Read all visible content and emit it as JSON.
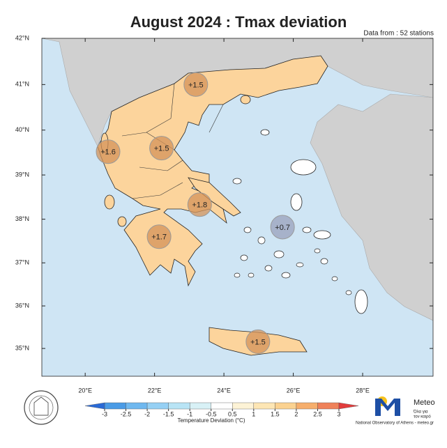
{
  "map": {
    "title": "August 2024 : Tmax deviation",
    "subtitle": "Data from : 52 stations",
    "projection": "mercator",
    "xlim": [
      18.75,
      30.03
    ],
    "ylim": [
      34.34,
      42
    ],
    "xticks": [
      {
        "value": 20,
        "label": "20°E"
      },
      {
        "value": 22,
        "label": "22°E"
      },
      {
        "value": 24,
        "label": "24°E"
      },
      {
        "value": 26,
        "label": "26°E"
      },
      {
        "value": 28,
        "label": "28°E"
      }
    ],
    "yticks": [
      {
        "value": 35,
        "label": "35°N"
      },
      {
        "value": 36,
        "label": "36°N"
      },
      {
        "value": 37,
        "label": "37°N"
      },
      {
        "value": 38,
        "label": "38°N"
      },
      {
        "value": 39,
        "label": "39°N"
      },
      {
        "value": 40,
        "label": "40°N"
      },
      {
        "value": 41,
        "label": "41°N"
      },
      {
        "value": 42,
        "label": "42°N"
      }
    ],
    "markers": [
      {
        "lon": 23.19,
        "lat": 41.0,
        "value": 1.5,
        "label": "+1.5",
        "color": "#d4935a"
      },
      {
        "lon": 20.66,
        "lat": 39.52,
        "value": 1.6,
        "label": "+1.6",
        "color": "#d4935a"
      },
      {
        "lon": 22.2,
        "lat": 39.6,
        "value": 1.5,
        "label": "+1.5",
        "color": "#d4935a"
      },
      {
        "lon": 23.3,
        "lat": 38.33,
        "value": 1.8,
        "label": "+1.8",
        "color": "#d4935a"
      },
      {
        "lon": 25.69,
        "lat": 37.82,
        "value": 0.7,
        "label": "+0.7",
        "color": "#9aa0bc"
      },
      {
        "lon": 22.13,
        "lat": 37.6,
        "value": 1.7,
        "label": "+1.7",
        "color": "#d4935a"
      },
      {
        "lon": 24.98,
        "lat": 35.16,
        "value": 1.5,
        "label": "+1.5",
        "color": "#d4935a"
      }
    ],
    "colorbar": {
      "label": "Temperature Deviation (°C)",
      "ticks": [
        -3,
        -2.5,
        -2,
        -1.5,
        -1,
        -0.5,
        0.5,
        1,
        1.5,
        2,
        2.5,
        3
      ],
      "colors": [
        "#4a9be6",
        "#6fb8ef",
        "#95d0f4",
        "#b8e4f5",
        "#d8f1f6",
        "#ffffff",
        "#fdf3d6",
        "#fde6b4",
        "#fbd290",
        "#f6ae6c",
        "#ef8159"
      ],
      "under_color": "#2a6ad6",
      "over_color": "#e23c3c"
    },
    "footer": {
      "brand": "Meteo",
      "slogan_line1": "Όλα για",
      "slogan_line2": "τον καιρό",
      "credit": "National Observatory of Athens - meteo.gr"
    }
  }
}
